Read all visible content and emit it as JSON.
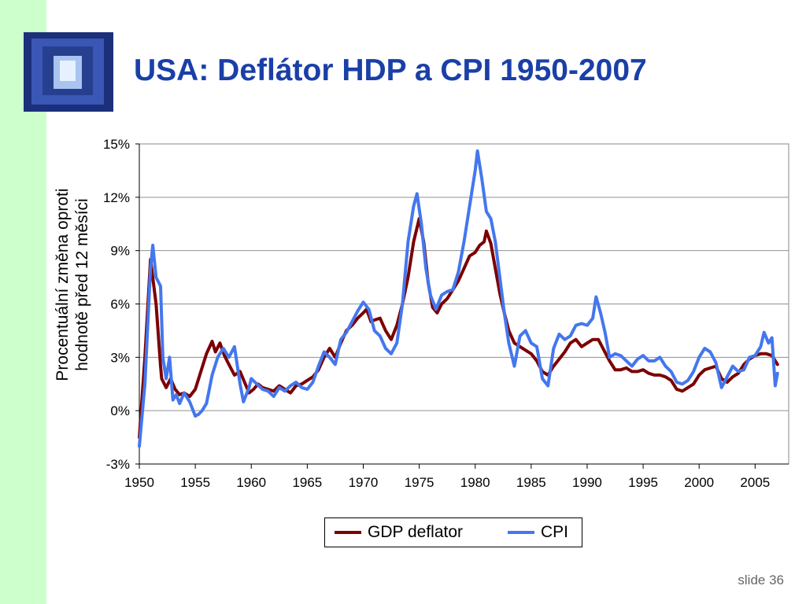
{
  "slide": {
    "title": "USA: Deflátor HDP a CPI 1950-2007",
    "footer": "slide 36",
    "logo_icon": "window-perspective-icon"
  },
  "chart_data": {
    "type": "line",
    "ylabel_lines": [
      "Procentuální změna oproti",
      "hodnotě před 12 měsíci"
    ],
    "xlabel": "",
    "xlim": [
      1950,
      2008
    ],
    "ylim": [
      -3,
      15
    ],
    "x_ticks": [
      1950,
      1955,
      1960,
      1965,
      1970,
      1975,
      1980,
      1985,
      1990,
      1995,
      2000,
      2005
    ],
    "y_ticks": [
      -3,
      0,
      3,
      6,
      9,
      12,
      15
    ],
    "y_tick_labels": [
      "-3%",
      "0%",
      "3%",
      "6%",
      "9%",
      "12%",
      "15%"
    ],
    "grid": "horizontal",
    "legend_position": "bottom",
    "series": [
      {
        "name": "GDP deflator",
        "color": "#7b0000",
        "points": [
          [
            1950,
            -1.5
          ],
          [
            1950.5,
            3
          ],
          [
            1951,
            8.5
          ],
          [
            1951.5,
            6
          ],
          [
            1951.9,
            2.5
          ],
          [
            1952,
            1.8
          ],
          [
            1952.4,
            1.3
          ],
          [
            1952.8,
            1.8
          ],
          [
            1953.2,
            1.2
          ],
          [
            1953.6,
            0.9
          ],
          [
            1954,
            1.0
          ],
          [
            1954.5,
            0.8
          ],
          [
            1955,
            1.2
          ],
          [
            1955.5,
            2.2
          ],
          [
            1956,
            3.2
          ],
          [
            1956.5,
            3.9
          ],
          [
            1956.8,
            3.3
          ],
          [
            1957.2,
            3.8
          ],
          [
            1957.6,
            3.1
          ],
          [
            1958,
            2.6
          ],
          [
            1958.5,
            2.0
          ],
          [
            1959,
            2.2
          ],
          [
            1959.4,
            1.6
          ],
          [
            1959.8,
            1.0
          ],
          [
            1960.2,
            1.2
          ],
          [
            1960.6,
            1.5
          ],
          [
            1961,
            1.3
          ],
          [
            1961.5,
            1.2
          ],
          [
            1962,
            1.1
          ],
          [
            1962.5,
            1.4
          ],
          [
            1963,
            1.2
          ],
          [
            1963.5,
            1.0
          ],
          [
            1964,
            1.4
          ],
          [
            1964.5,
            1.5
          ],
          [
            1965,
            1.7
          ],
          [
            1965.5,
            1.9
          ],
          [
            1966,
            2.3
          ],
          [
            1966.5,
            3.0
          ],
          [
            1967,
            3.5
          ],
          [
            1967.5,
            3.0
          ],
          [
            1968,
            3.8
          ],
          [
            1968.5,
            4.5
          ],
          [
            1969,
            4.8
          ],
          [
            1969.5,
            5.2
          ],
          [
            1970,
            5.5
          ],
          [
            1970.3,
            5.7
          ],
          [
            1970.7,
            5.0
          ],
          [
            1971,
            5.1
          ],
          [
            1971.5,
            5.2
          ],
          [
            1972,
            4.5
          ],
          [
            1972.5,
            4.0
          ],
          [
            1973,
            4.8
          ],
          [
            1973.5,
            6.0
          ],
          [
            1974,
            7.5
          ],
          [
            1974.5,
            9.5
          ],
          [
            1975,
            10.8
          ],
          [
            1975.4,
            9.5
          ],
          [
            1975.8,
            7.2
          ],
          [
            1976.2,
            5.8
          ],
          [
            1976.6,
            5.5
          ],
          [
            1977,
            6.0
          ],
          [
            1977.5,
            6.3
          ],
          [
            1978,
            6.8
          ],
          [
            1978.5,
            7.3
          ],
          [
            1979,
            8.0
          ],
          [
            1979.5,
            8.7
          ],
          [
            1980,
            8.9
          ],
          [
            1980.4,
            9.3
          ],
          [
            1980.8,
            9.5
          ],
          [
            1981,
            10.1
          ],
          [
            1981.4,
            9.4
          ],
          [
            1981.8,
            8.0
          ],
          [
            1982.2,
            6.6
          ],
          [
            1982.6,
            5.5
          ],
          [
            1983,
            4.5
          ],
          [
            1983.5,
            3.8
          ],
          [
            1984,
            3.6
          ],
          [
            1984.5,
            3.4
          ],
          [
            1985,
            3.2
          ],
          [
            1985.5,
            2.8
          ],
          [
            1986,
            2.2
          ],
          [
            1986.5,
            2.0
          ],
          [
            1987,
            2.5
          ],
          [
            1987.5,
            2.9
          ],
          [
            1988,
            3.3
          ],
          [
            1988.5,
            3.8
          ],
          [
            1989,
            4.0
          ],
          [
            1989.5,
            3.6
          ],
          [
            1990,
            3.8
          ],
          [
            1990.5,
            4.0
          ],
          [
            1991,
            4.0
          ],
          [
            1991.5,
            3.4
          ],
          [
            1992,
            2.8
          ],
          [
            1992.5,
            2.3
          ],
          [
            1993,
            2.3
          ],
          [
            1993.5,
            2.4
          ],
          [
            1994,
            2.2
          ],
          [
            1994.5,
            2.2
          ],
          [
            1995,
            2.3
          ],
          [
            1995.5,
            2.1
          ],
          [
            1996,
            2.0
          ],
          [
            1996.5,
            2.0
          ],
          [
            1997,
            1.9
          ],
          [
            1997.5,
            1.7
          ],
          [
            1998,
            1.2
          ],
          [
            1998.5,
            1.1
          ],
          [
            1999,
            1.3
          ],
          [
            1999.5,
            1.5
          ],
          [
            2000,
            2.0
          ],
          [
            2000.5,
            2.3
          ],
          [
            2001,
            2.4
          ],
          [
            2001.5,
            2.5
          ],
          [
            2002,
            1.8
          ],
          [
            2002.5,
            1.6
          ],
          [
            2003,
            1.9
          ],
          [
            2003.5,
            2.1
          ],
          [
            2004,
            2.6
          ],
          [
            2004.5,
            2.9
          ],
          [
            2005,
            3.1
          ],
          [
            2005.5,
            3.2
          ],
          [
            2006,
            3.2
          ],
          [
            2006.5,
            3.1
          ],
          [
            2007,
            2.6
          ]
        ]
      },
      {
        "name": "CPI",
        "color": "#4477ee",
        "points": [
          [
            1950,
            -2.0
          ],
          [
            1950.5,
            1.5
          ],
          [
            1951,
            8.0
          ],
          [
            1951.2,
            9.3
          ],
          [
            1951.5,
            7.5
          ],
          [
            1951.9,
            7.0
          ],
          [
            1952.1,
            3.0
          ],
          [
            1952.4,
            1.8
          ],
          [
            1952.7,
            3.0
          ],
          [
            1953,
            0.6
          ],
          [
            1953.3,
            0.9
          ],
          [
            1953.6,
            0.4
          ],
          [
            1954,
            1.0
          ],
          [
            1954.5,
            0.5
          ],
          [
            1955,
            -0.3
          ],
          [
            1955.3,
            -0.2
          ],
          [
            1955.6,
            0.0
          ],
          [
            1956,
            0.4
          ],
          [
            1956.5,
            2.0
          ],
          [
            1957,
            3.0
          ],
          [
            1957.5,
            3.5
          ],
          [
            1958,
            3.0
          ],
          [
            1958.5,
            3.6
          ],
          [
            1959,
            1.5
          ],
          [
            1959.3,
            0.5
          ],
          [
            1959.8,
            1.3
          ],
          [
            1960,
            1.8
          ],
          [
            1960.5,
            1.5
          ],
          [
            1961,
            1.2
          ],
          [
            1961.5,
            1.1
          ],
          [
            1962,
            0.8
          ],
          [
            1962.5,
            1.3
          ],
          [
            1963,
            1.1
          ],
          [
            1963.5,
            1.4
          ],
          [
            1964,
            1.6
          ],
          [
            1964.5,
            1.3
          ],
          [
            1965,
            1.2
          ],
          [
            1965.5,
            1.6
          ],
          [
            1966,
            2.5
          ],
          [
            1966.5,
            3.3
          ],
          [
            1967,
            3.0
          ],
          [
            1967.5,
            2.6
          ],
          [
            1968,
            4.0
          ],
          [
            1968.5,
            4.4
          ],
          [
            1969,
            5.0
          ],
          [
            1969.5,
            5.6
          ],
          [
            1970,
            6.1
          ],
          [
            1970.5,
            5.7
          ],
          [
            1971,
            4.5
          ],
          [
            1971.5,
            4.2
          ],
          [
            1972,
            3.5
          ],
          [
            1972.5,
            3.2
          ],
          [
            1973,
            3.8
          ],
          [
            1973.5,
            6.0
          ],
          [
            1974,
            9.5
          ],
          [
            1974.5,
            11.5
          ],
          [
            1974.8,
            12.2
          ],
          [
            1975.2,
            10.5
          ],
          [
            1975.6,
            8.0
          ],
          [
            1976,
            6.5
          ],
          [
            1976.5,
            5.7
          ],
          [
            1977,
            6.5
          ],
          [
            1977.5,
            6.7
          ],
          [
            1978,
            6.8
          ],
          [
            1978.5,
            7.8
          ],
          [
            1979,
            9.5
          ],
          [
            1979.5,
            11.5
          ],
          [
            1980,
            13.5
          ],
          [
            1980.2,
            14.6
          ],
          [
            1980.6,
            13.0
          ],
          [
            1981,
            11.2
          ],
          [
            1981.4,
            10.8
          ],
          [
            1981.8,
            9.5
          ],
          [
            1982.2,
            7.5
          ],
          [
            1982.6,
            5.5
          ],
          [
            1983,
            3.8
          ],
          [
            1983.5,
            2.5
          ],
          [
            1984,
            4.2
          ],
          [
            1984.5,
            4.5
          ],
          [
            1985,
            3.8
          ],
          [
            1985.5,
            3.6
          ],
          [
            1986,
            1.8
          ],
          [
            1986.5,
            1.4
          ],
          [
            1987,
            3.5
          ],
          [
            1987.5,
            4.3
          ],
          [
            1988,
            4.0
          ],
          [
            1988.5,
            4.2
          ],
          [
            1989,
            4.8
          ],
          [
            1989.5,
            4.9
          ],
          [
            1990,
            4.8
          ],
          [
            1990.5,
            5.2
          ],
          [
            1990.8,
            6.4
          ],
          [
            1991.2,
            5.5
          ],
          [
            1991.6,
            4.4
          ],
          [
            1992,
            3.0
          ],
          [
            1992.5,
            3.2
          ],
          [
            1993,
            3.1
          ],
          [
            1993.5,
            2.8
          ],
          [
            1994,
            2.5
          ],
          [
            1994.5,
            2.9
          ],
          [
            1995,
            3.1
          ],
          [
            1995.5,
            2.8
          ],
          [
            1996,
            2.8
          ],
          [
            1996.5,
            3.0
          ],
          [
            1997,
            2.5
          ],
          [
            1997.5,
            2.2
          ],
          [
            1998,
            1.6
          ],
          [
            1998.5,
            1.5
          ],
          [
            1999,
            1.7
          ],
          [
            1999.5,
            2.2
          ],
          [
            2000,
            3.0
          ],
          [
            2000.5,
            3.5
          ],
          [
            2001,
            3.3
          ],
          [
            2001.5,
            2.7
          ],
          [
            2002,
            1.3
          ],
          [
            2002.5,
            1.9
          ],
          [
            2003,
            2.5
          ],
          [
            2003.5,
            2.2
          ],
          [
            2004,
            2.3
          ],
          [
            2004.5,
            3.0
          ],
          [
            2005,
            3.1
          ],
          [
            2005.5,
            3.6
          ],
          [
            2005.8,
            4.4
          ],
          [
            2006.2,
            3.8
          ],
          [
            2006.5,
            4.1
          ],
          [
            2006.8,
            1.4
          ],
          [
            2007,
            2.1
          ]
        ]
      }
    ]
  }
}
